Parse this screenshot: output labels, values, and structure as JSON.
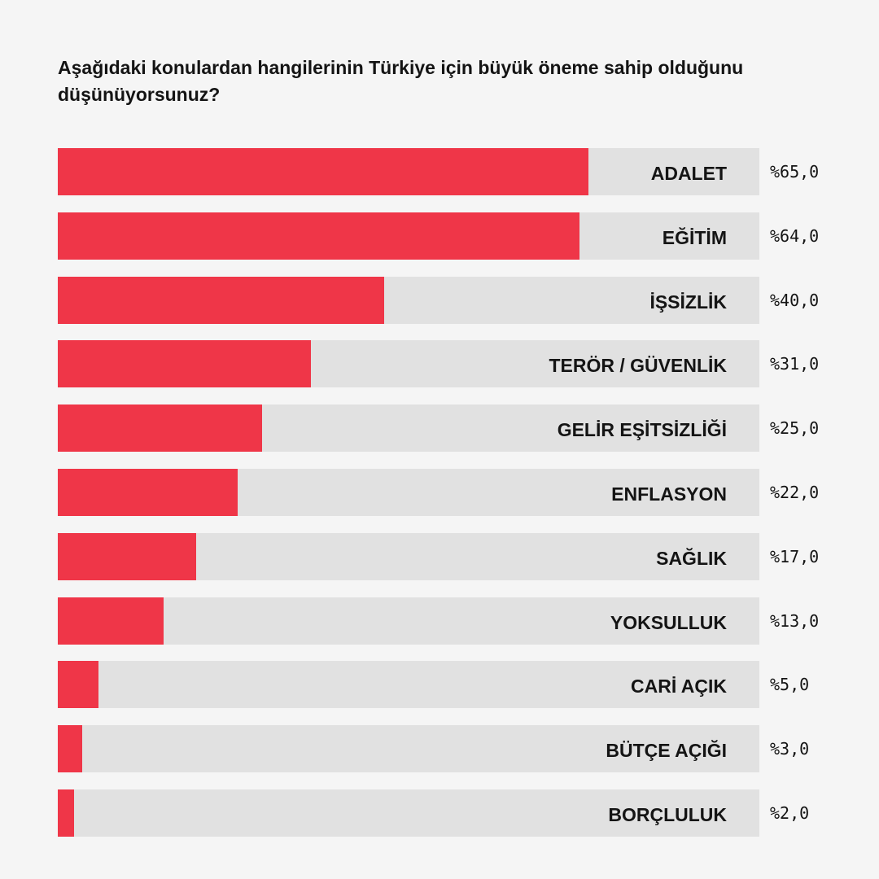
{
  "chart_data": {
    "type": "bar",
    "title": "Aşağıdaki konulardan hangilerinin Türkiye için büyük öneme sahip olduğunu düşünüyorsunuz?",
    "orientation": "horizontal",
    "categories": [
      "ADALET",
      "EĞİTİM",
      "İŞSİZLİK",
      "TERÖR / GÜVENLİK",
      "GELİR EŞİTSİZLİĞİ",
      "ENFLASYON",
      "SAĞLIK",
      "YOKSULLUK",
      "CARİ AÇIK",
      "BÜTÇE AÇIĞI",
      "BORÇLULUK"
    ],
    "values": [
      65.0,
      64.0,
      40.0,
      31.0,
      25.0,
      22.0,
      17.0,
      13.0,
      5.0,
      3.0,
      2.0
    ],
    "value_labels": [
      "%65,0",
      "%64,0",
      "%40,0",
      "%31,0",
      "%25,0",
      "%22,0",
      "%17,0",
      "%13,0",
      "%5,0",
      "%3,0",
      "%2,0"
    ],
    "xlim": [
      0,
      86
    ],
    "bar_color": "#ef3648",
    "track_color": "#e1e1e1",
    "grid": false,
    "legend": "none"
  }
}
